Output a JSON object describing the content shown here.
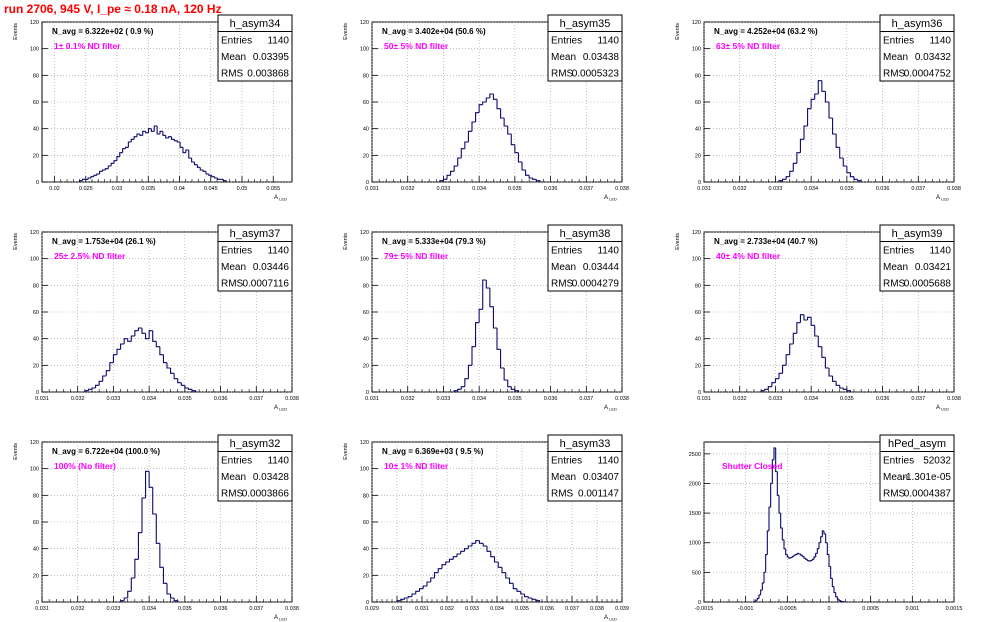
{
  "page_title": "run 2706,   945 V, I_pe ≈ 0.18 nA, 120 Hz",
  "colors": {
    "line": "#0b0b6e",
    "annotation": "#ff00ff",
    "title": "#ff0000",
    "grid": "#999999"
  },
  "chart_data": [
    {
      "type": "histogram",
      "name": "h_asym34",
      "stats": {
        "Entries": "1140",
        "Mean": "0.03395",
        "RMS": "0.003868"
      },
      "n_avg": "N_avg = 6.322e+02 ( 0.9 %)",
      "filter": "1± 0.1% ND filter",
      "ylabel": "Events",
      "xlabel": "A_LED",
      "xlim": [
        0.018,
        0.058
      ],
      "ylim": [
        0,
        120
      ],
      "xticks": [
        "0.02",
        "0.025",
        "0.03",
        "0.035",
        "0.04",
        "0.045",
        "0.05",
        "0.055"
      ],
      "xtick_values": [
        0.02,
        0.025,
        0.03,
        0.035,
        0.04,
        0.045,
        0.05,
        0.055
      ],
      "yticks": [
        0,
        20,
        40,
        60,
        80,
        100,
        120
      ],
      "bins": {
        "start": 0.024,
        "width": 0.00046,
        "values": [
          1,
          2,
          2,
          3,
          4,
          5,
          6,
          8,
          9,
          10,
          12,
          14,
          16,
          19,
          22,
          25,
          26,
          30,
          32,
          34,
          36,
          35,
          38,
          37,
          40,
          38,
          42,
          36,
          38,
          35,
          33,
          34,
          32,
          31,
          30,
          26,
          22,
          24,
          18,
          15,
          13,
          11,
          9,
          8,
          6,
          5,
          4,
          3,
          2,
          2,
          1
        ]
      }
    },
    {
      "type": "histogram",
      "name": "h_asym35",
      "stats": {
        "Entries": "1140",
        "Mean": "0.03438",
        "RMS": "0.0005323"
      },
      "n_avg": "N_avg = 3.402e+04 (50.6 %)",
      "filter": "50± 5% ND filter",
      "ylabel": "Events",
      "xlabel": "A_LED",
      "xlim": [
        0.031,
        0.038
      ],
      "ylim": [
        0,
        120
      ],
      "xticks": [
        "0.031",
        "0.032",
        "0.033",
        "0.034",
        "0.035",
        "0.036",
        "0.037",
        "0.038"
      ],
      "xtick_values": [
        0.031,
        0.032,
        0.033,
        0.034,
        0.035,
        0.036,
        0.037,
        0.038
      ],
      "yticks": [
        0,
        20,
        40,
        60,
        80,
        100,
        120
      ],
      "bins": {
        "start": 0.0329,
        "width": 0.0001,
        "values": [
          1,
          2,
          5,
          8,
          12,
          18,
          25,
          30,
          38,
          45,
          52,
          58,
          60,
          63,
          66,
          62,
          55,
          48,
          42,
          36,
          28,
          22,
          15,
          9,
          5,
          3,
          2,
          1
        ]
      }
    },
    {
      "type": "histogram",
      "name": "h_asym36",
      "stats": {
        "Entries": "1140",
        "Mean": "0.03432",
        "RMS": "0.0004752"
      },
      "n_avg": "N_avg = 4.252e+04 (63.2 %)",
      "filter": "63± 5% ND filter",
      "ylabel": "Events",
      "xlabel": "A_LED",
      "xlim": [
        0.031,
        0.038
      ],
      "ylim": [
        0,
        120
      ],
      "xticks": [
        "0.031",
        "0.032",
        "0.033",
        "0.034",
        "0.035",
        "0.036",
        "0.037",
        "0.038"
      ],
      "xtick_values": [
        0.031,
        0.032,
        0.033,
        0.034,
        0.035,
        0.036,
        0.037,
        0.038
      ],
      "yticks": [
        0,
        20,
        40,
        60,
        80,
        100,
        120
      ],
      "bins": {
        "start": 0.0331,
        "width": 0.0001,
        "values": [
          1,
          2,
          4,
          8,
          14,
          22,
          32,
          42,
          55,
          62,
          66,
          76,
          68,
          60,
          48,
          36,
          26,
          18,
          12,
          7,
          4,
          2,
          1
        ]
      }
    },
    {
      "type": "histogram",
      "name": "h_asym37",
      "stats": {
        "Entries": "1140",
        "Mean": "0.03446",
        "RMS": "0.0007116"
      },
      "n_avg": "N_avg = 1.753e+04 (26.1 %)",
      "filter": "25± 2.5% ND filter",
      "ylabel": "Events",
      "xlabel": "A_LED",
      "xlim": [
        0.031,
        0.038
      ],
      "ylim": [
        0,
        120
      ],
      "xticks": [
        "0.031",
        "0.032",
        "0.033",
        "0.034",
        "0.035",
        "0.036",
        "0.037",
        "0.038"
      ],
      "xtick_values": [
        0.031,
        0.032,
        0.033,
        0.034,
        0.035,
        0.036,
        0.037,
        0.038
      ],
      "yticks": [
        0,
        20,
        40,
        60,
        80,
        100,
        120
      ],
      "bins": {
        "start": 0.0322,
        "width": 0.0001,
        "values": [
          1,
          2,
          3,
          5,
          8,
          12,
          16,
          22,
          28,
          32,
          36,
          40,
          38,
          42,
          46,
          48,
          44,
          40,
          46,
          38,
          34,
          28,
          22,
          18,
          14,
          10,
          7,
          5,
          3,
          2,
          1
        ]
      }
    },
    {
      "type": "histogram",
      "name": "h_asym38",
      "stats": {
        "Entries": "1140",
        "Mean": "0.03444",
        "RMS": "0.0004279"
      },
      "n_avg": "N_avg = 5.333e+04 (79.3 %)",
      "filter": "79± 5% ND filter",
      "ylabel": "Events",
      "xlabel": "A_LED",
      "xlim": [
        0.031,
        0.038
      ],
      "ylim": [
        0,
        120
      ],
      "xticks": [
        "0.031",
        "0.032",
        "0.033",
        "0.034",
        "0.035",
        "0.036",
        "0.037",
        "0.038"
      ],
      "xtick_values": [
        0.031,
        0.032,
        0.033,
        0.034,
        0.035,
        0.036,
        0.037,
        0.038
      ],
      "yticks": [
        0,
        20,
        40,
        60,
        80,
        100,
        120
      ],
      "bins": {
        "start": 0.0333,
        "width": 0.0001,
        "values": [
          1,
          2,
          4,
          10,
          20,
          34,
          52,
          62,
          84,
          78,
          64,
          48,
          32,
          18,
          9,
          4,
          2,
          1
        ]
      }
    },
    {
      "type": "histogram",
      "name": "h_asym39",
      "stats": {
        "Entries": "1140",
        "Mean": "0.03421",
        "RMS": "0.0005688"
      },
      "n_avg": "N_avg = 2.733e+04 (40.7 %)",
      "filter": "40± 4% ND filter",
      "ylabel": "Events",
      "xlabel": "A_LED",
      "xlim": [
        0.031,
        0.038
      ],
      "ylim": [
        0,
        120
      ],
      "xticks": [
        "0.031",
        "0.032",
        "0.033",
        "0.034",
        "0.035",
        "0.036",
        "0.037",
        "0.038"
      ],
      "xtick_values": [
        0.031,
        0.032,
        0.033,
        0.034,
        0.035,
        0.036,
        0.037,
        0.038
      ],
      "yticks": [
        0,
        20,
        40,
        60,
        80,
        100,
        120
      ],
      "bins": {
        "start": 0.0326,
        "width": 0.0001,
        "values": [
          1,
          2,
          4,
          7,
          10,
          14,
          20,
          28,
          36,
          44,
          52,
          58,
          54,
          56,
          50,
          42,
          34,
          26,
          18,
          12,
          8,
          5,
          3,
          2,
          1
        ]
      }
    },
    {
      "type": "histogram",
      "name": "h_asym32",
      "stats": {
        "Entries": "1140",
        "Mean": "0.03428",
        "RMS": "0.0003866"
      },
      "n_avg": "N_avg = 6.722e+04 (100.0 %)",
      "filter": "100% (No filter)",
      "ylabel": "Events",
      "xlabel": "A_LED",
      "xlim": [
        0.031,
        0.038
      ],
      "ylim": [
        0,
        120
      ],
      "xticks": [
        "0.031",
        "0.032",
        "0.033",
        "0.034",
        "0.035",
        "0.036",
        "0.037",
        "0.038"
      ],
      "xtick_values": [
        0.031,
        0.032,
        0.033,
        0.034,
        0.035,
        0.036,
        0.037,
        0.038
      ],
      "yticks": [
        0,
        20,
        40,
        60,
        80,
        100,
        120
      ],
      "bins": {
        "start": 0.0332,
        "width": 0.0001,
        "values": [
          1,
          3,
          8,
          18,
          32,
          52,
          78,
          98,
          86,
          66,
          44,
          26,
          14,
          6,
          3,
          1
        ]
      }
    },
    {
      "type": "histogram",
      "name": "h_asym33",
      "stats": {
        "Entries": "1140",
        "Mean": "0.03407",
        "RMS": "0.001147"
      },
      "n_avg": "N_avg = 6.369e+03 ( 9.5 %)",
      "filter": "10± 1% ND filter",
      "ylabel": "Events",
      "xlabel": "A_LED",
      "xlim": [
        0.029,
        0.039
      ],
      "ylim": [
        0,
        120
      ],
      "xticks": [
        "0.029",
        "0.03",
        "0.031",
        "0.032",
        "0.033",
        "0.034",
        "0.035",
        "0.036",
        "0.037",
        "0.038",
        "0.039"
      ],
      "xtick_values": [
        0.029,
        0.03,
        0.031,
        0.032,
        0.033,
        0.034,
        0.035,
        0.036,
        0.037,
        0.038,
        0.039
      ],
      "yticks": [
        0,
        20,
        40,
        60,
        80,
        100,
        120
      ],
      "bins": {
        "start": 0.03,
        "width": 0.00015,
        "values": [
          1,
          2,
          3,
          4,
          6,
          8,
          10,
          12,
          15,
          18,
          22,
          25,
          28,
          30,
          32,
          34,
          36,
          38,
          40,
          42,
          44,
          46,
          44,
          42,
          38,
          34,
          30,
          26,
          22,
          18,
          14,
          10,
          8,
          6,
          4,
          3,
          2,
          1
        ]
      }
    },
    {
      "type": "histogram",
      "name": "hPed_asym",
      "stats": {
        "Entries": "52032",
        "Mean": "-1.301e-05",
        "RMS": "0.0004387"
      },
      "annotation": "Shutter Closed",
      "xlabel": "",
      "xlim": [
        -0.0015,
        0.0015
      ],
      "ylim": [
        0,
        2700
      ],
      "xticks": [
        "-0.0015",
        "-0.001",
        "-0.0005",
        "0",
        "0.0005",
        "0.001",
        "0.0015"
      ],
      "xtick_values": [
        -0.0015,
        -0.001,
        -0.0005,
        0,
        0.0005,
        0.001,
        0.0015
      ],
      "yticks": [
        0,
        500,
        1000,
        1500,
        2000,
        2500
      ],
      "bins": {
        "start": -0.0009,
        "width": 2e-05,
        "values": [
          10,
          30,
          60,
          120,
          200,
          320,
          500,
          800,
          1200,
          1600,
          2000,
          2400,
          2600,
          2200,
          1800,
          1500,
          1250,
          1050,
          900,
          800,
          760,
          740,
          750,
          770,
          790,
          800,
          820,
          810,
          790,
          770,
          740,
          720,
          700,
          690,
          700,
          720,
          760,
          820,
          900,
          1000,
          1100,
          1200,
          1150,
          1000,
          800,
          600,
          400,
          260,
          160,
          90,
          50,
          25,
          12,
          5
        ]
      }
    }
  ]
}
